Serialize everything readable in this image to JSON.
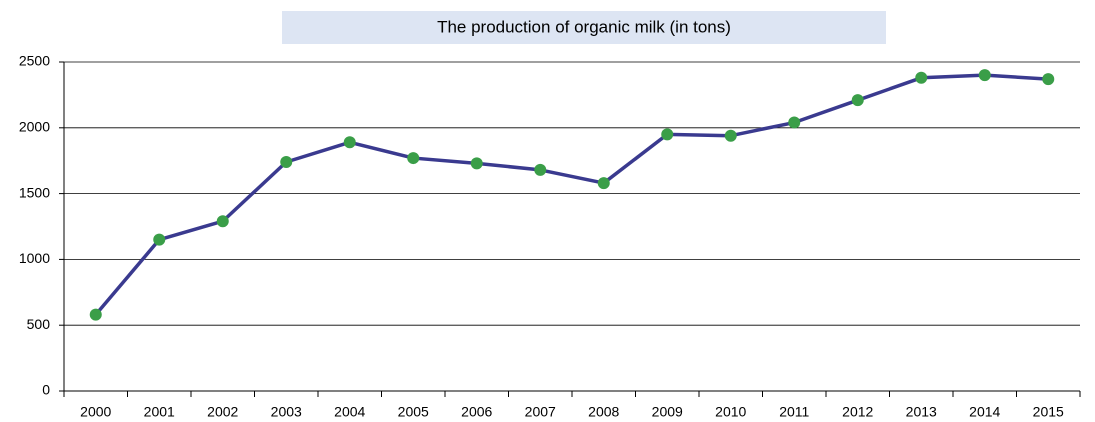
{
  "chart_data": {
    "type": "line",
    "title": "The production of organic milk (in tons)",
    "categories": [
      "2000",
      "2001",
      "2002",
      "2003",
      "2004",
      "2005",
      "2006",
      "2007",
      "2008",
      "2009",
      "2010",
      "2011",
      "2012",
      "2013",
      "2014",
      "2015"
    ],
    "series": [
      {
        "color": "#3a3a8f",
        "marker_color": "#3a9e48",
        "values": [
          580,
          1150,
          1290,
          1740,
          1890,
          1770,
          1730,
          1680,
          1580,
          1950,
          1940,
          2040,
          2210,
          2380,
          2400,
          2370
        ]
      }
    ],
    "ylim": [
      0,
      2500
    ],
    "yticks": [
      0,
      500,
      1000,
      1500,
      2000,
      2500
    ],
    "grid": true
  }
}
